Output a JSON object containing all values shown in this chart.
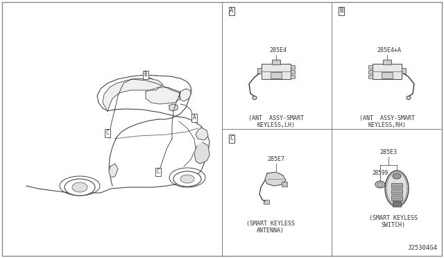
{
  "bg_color": "#ffffff",
  "line_color": "#555555",
  "text_color": "#333333",
  "diagram_title": "J25304G4",
  "parts": {
    "A": {
      "part_num": "285E4",
      "desc_line1": "(ANT  ASSY-SMART",
      "desc_line2": "KEYLESS,LH)"
    },
    "B": {
      "part_num": "285E4+A",
      "desc_line1": "(ANT  ASSY-SMART",
      "desc_line2": "KEYLESS,RH)"
    },
    "C": {
      "part_num": "285E7",
      "desc_line1": "(SMART KEYLESS",
      "desc_line2": "ANTENNA)"
    },
    "D": {
      "part_num_top": "285E3",
      "part_num_sub": "28599",
      "desc_line1": "(SMART KEYLESS",
      "desc_line2": "SWITCH)"
    }
  }
}
